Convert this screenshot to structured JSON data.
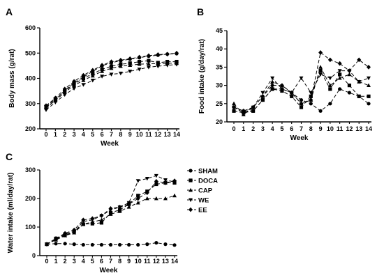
{
  "legend": {
    "entries": [
      {
        "label": "SHAM",
        "marker": "circle",
        "dash": "6,3"
      },
      {
        "label": "DOCA",
        "marker": "square",
        "dash": "6,3"
      },
      {
        "label": "CAP",
        "marker": "triangle-up",
        "dash": "6,3"
      },
      {
        "label": "WE",
        "marker": "triangle-down",
        "dash": "6,3"
      },
      {
        "label": "EE",
        "marker": "diamond",
        "dash": "6,3"
      }
    ]
  },
  "chart_data": [
    {
      "type": "line",
      "panel": "A",
      "xlabel": "Week",
      "ylabel": "Body mass (g/rat)",
      "x": [
        0,
        1,
        2,
        3,
        4,
        5,
        6,
        7,
        8,
        9,
        10,
        11,
        12,
        13,
        14
      ],
      "xlim": [
        0,
        14
      ],
      "ylim": [
        200,
        600
      ],
      "yticks": [
        200,
        300,
        400,
        500,
        600
      ],
      "series": [
        {
          "name": "SHAM",
          "marker": "circle",
          "values": [
            280,
            315,
            352,
            382,
            405,
            428,
            450,
            462,
            470,
            476,
            482,
            488,
            492,
            496,
            498
          ]
        },
        {
          "name": "DOCA",
          "marker": "square",
          "values": [
            288,
            318,
            350,
            378,
            400,
            418,
            436,
            448,
            456,
            460,
            466,
            470,
            462,
            466,
            466
          ]
        },
        {
          "name": "CAP",
          "marker": "triangle-up",
          "values": [
            285,
            312,
            345,
            372,
            392,
            410,
            428,
            440,
            448,
            452,
            456,
            458,
            458,
            460,
            460
          ]
        },
        {
          "name": "WE",
          "marker": "triangle-down",
          "values": [
            275,
            305,
            335,
            360,
            375,
            392,
            408,
            416,
            420,
            428,
            436,
            444,
            448,
            452,
            455
          ]
        },
        {
          "name": "EE",
          "marker": "diamond",
          "values": [
            292,
            322,
            358,
            388,
            412,
            432,
            452,
            466,
            472,
            478,
            484,
            490,
            494,
            496,
            500
          ]
        }
      ]
    },
    {
      "type": "line",
      "panel": "B",
      "xlabel": "Week",
      "ylabel": "Food intake (g/day/rat)",
      "x": [
        0,
        1,
        2,
        3,
        4,
        5,
        6,
        7,
        8,
        9,
        10,
        11,
        12,
        13,
        14
      ],
      "xlim": [
        0,
        14
      ],
      "ylim": [
        20,
        45
      ],
      "yticks": [
        20,
        25,
        30,
        35,
        40,
        45
      ],
      "series": [
        {
          "name": "SHAM",
          "marker": "circle",
          "values": [
            24,
            23,
            23,
            26,
            29,
            29,
            28,
            26,
            25,
            23,
            25,
            29,
            28,
            27,
            25
          ]
        },
        {
          "name": "DOCA",
          "marker": "square",
          "values": [
            23,
            22.5,
            23,
            26,
            29,
            28.5,
            27,
            24,
            27,
            34,
            29,
            33,
            30,
            27,
            27
          ]
        },
        {
          "name": "CAP",
          "marker": "triangle-up",
          "values": [
            25,
            22,
            24,
            27,
            31,
            30,
            28,
            25,
            26,
            35,
            30,
            32,
            33,
            31,
            30
          ]
        },
        {
          "name": "WE",
          "marker": "triangle-down",
          "values": [
            24,
            22.5,
            24,
            28,
            32,
            29,
            28,
            32,
            28,
            33,
            32,
            34,
            34,
            31,
            32
          ]
        },
        {
          "name": "EE",
          "marker": "diamond",
          "values": [
            24,
            23,
            24,
            27,
            30,
            30,
            28,
            25,
            26,
            39,
            37,
            36,
            34,
            37,
            35
          ]
        }
      ]
    },
    {
      "type": "line",
      "panel": "C",
      "xlabel": "Week",
      "ylabel": "Water intake (ml/day/rat)",
      "x": [
        0,
        1,
        2,
        3,
        4,
        5,
        6,
        7,
        8,
        9,
        10,
        11,
        12,
        13,
        14
      ],
      "xlim": [
        0,
        14
      ],
      "ylim": [
        0,
        300
      ],
      "yticks": [
        0,
        100,
        200,
        300
      ],
      "series": [
        {
          "name": "SHAM",
          "marker": "circle",
          "values": [
            40,
            42,
            42,
            40,
            38,
            38,
            38,
            38,
            38,
            38,
            38,
            40,
            45,
            40,
            37
          ]
        },
        {
          "name": "DOCA",
          "marker": "square",
          "values": [
            40,
            60,
            75,
            85,
            110,
            112,
            115,
            150,
            160,
            180,
            210,
            225,
            250,
            255,
            255
          ]
        },
        {
          "name": "CAP",
          "marker": "triangle-up",
          "values": [
            40,
            55,
            70,
            80,
            110,
            118,
            125,
            145,
            155,
            170,
            185,
            200,
            200,
            200,
            210
          ]
        },
        {
          "name": "WE",
          "marker": "triangle-down",
          "values": [
            40,
            58,
            72,
            82,
            120,
            125,
            140,
            160,
            170,
            185,
            262,
            270,
            280,
            265,
            258
          ]
        },
        {
          "name": "EE",
          "marker": "diamond",
          "values": [
            40,
            60,
            78,
            90,
            125,
            130,
            140,
            165,
            170,
            180,
            200,
            220,
            260,
            255,
            262
          ]
        }
      ]
    }
  ]
}
